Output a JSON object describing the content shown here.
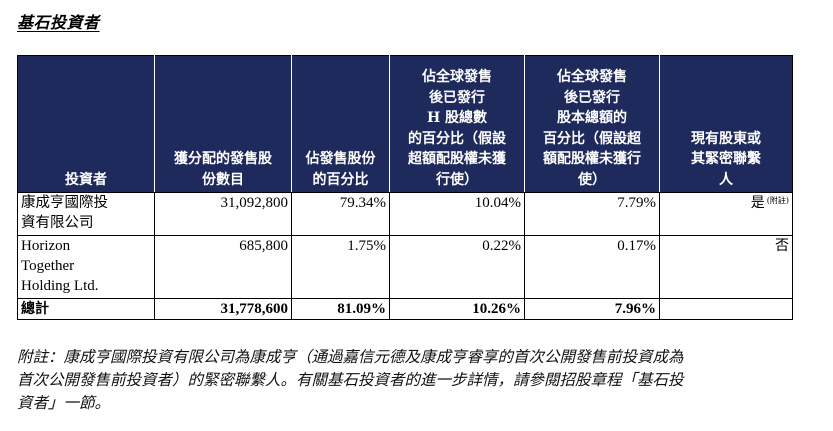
{
  "title": "基石投資者",
  "table": {
    "headers": {
      "investor": "投資者",
      "shares_allocated": [
        "獲分配的發售股",
        "份數目"
      ],
      "pct_offer_shares": [
        "佔發售股份",
        "的百分比"
      ],
      "pct_h_shares": [
        "佔全球發售",
        "後已發行",
        "H 股總數",
        "的百分比（假設",
        "超額配股權未獲",
        "行使）"
      ],
      "pct_total_capital": [
        "佔全球發售",
        "後已發行",
        "股本總額的",
        "百分比（假設超",
        "額配股權未獲行",
        "使）"
      ],
      "connected": [
        "現有股東或",
        "其緊密聯繫",
        "人"
      ]
    },
    "rows": [
      {
        "investor_lines": [
          "康成亨國際投",
          "資有限公司"
        ],
        "shares_allocated": "31,092,800",
        "pct_offer_shares": "79.34%",
        "pct_h_shares": "10.04%",
        "pct_total_capital": "7.79%",
        "connected": "是",
        "connected_note": "(附註)"
      },
      {
        "investor_lines": [
          "Horizon",
          "Together",
          "Holding Ltd."
        ],
        "shares_allocated": "685,800",
        "pct_offer_shares": "1.75%",
        "pct_h_shares": "0.22%",
        "pct_total_capital": "0.17%",
        "connected": "否"
      }
    ],
    "total": {
      "label": "總計",
      "shares_allocated": "31,778,600",
      "pct_offer_shares": "81.09%",
      "pct_h_shares": "10.26%",
      "pct_total_capital": "7.96%",
      "connected": ""
    }
  },
  "footnote": {
    "lines": [
      "附註：康成亨國際投資有限公司為康成亨（通過嘉信元德及康成亨睿享的首次公開發售前投資成為",
      "首次公開發售前投資者）的緊密聯繫人。有關基石投資者的進一步詳情，請參閱招股章程「基石投",
      "資者」一節。"
    ]
  }
}
